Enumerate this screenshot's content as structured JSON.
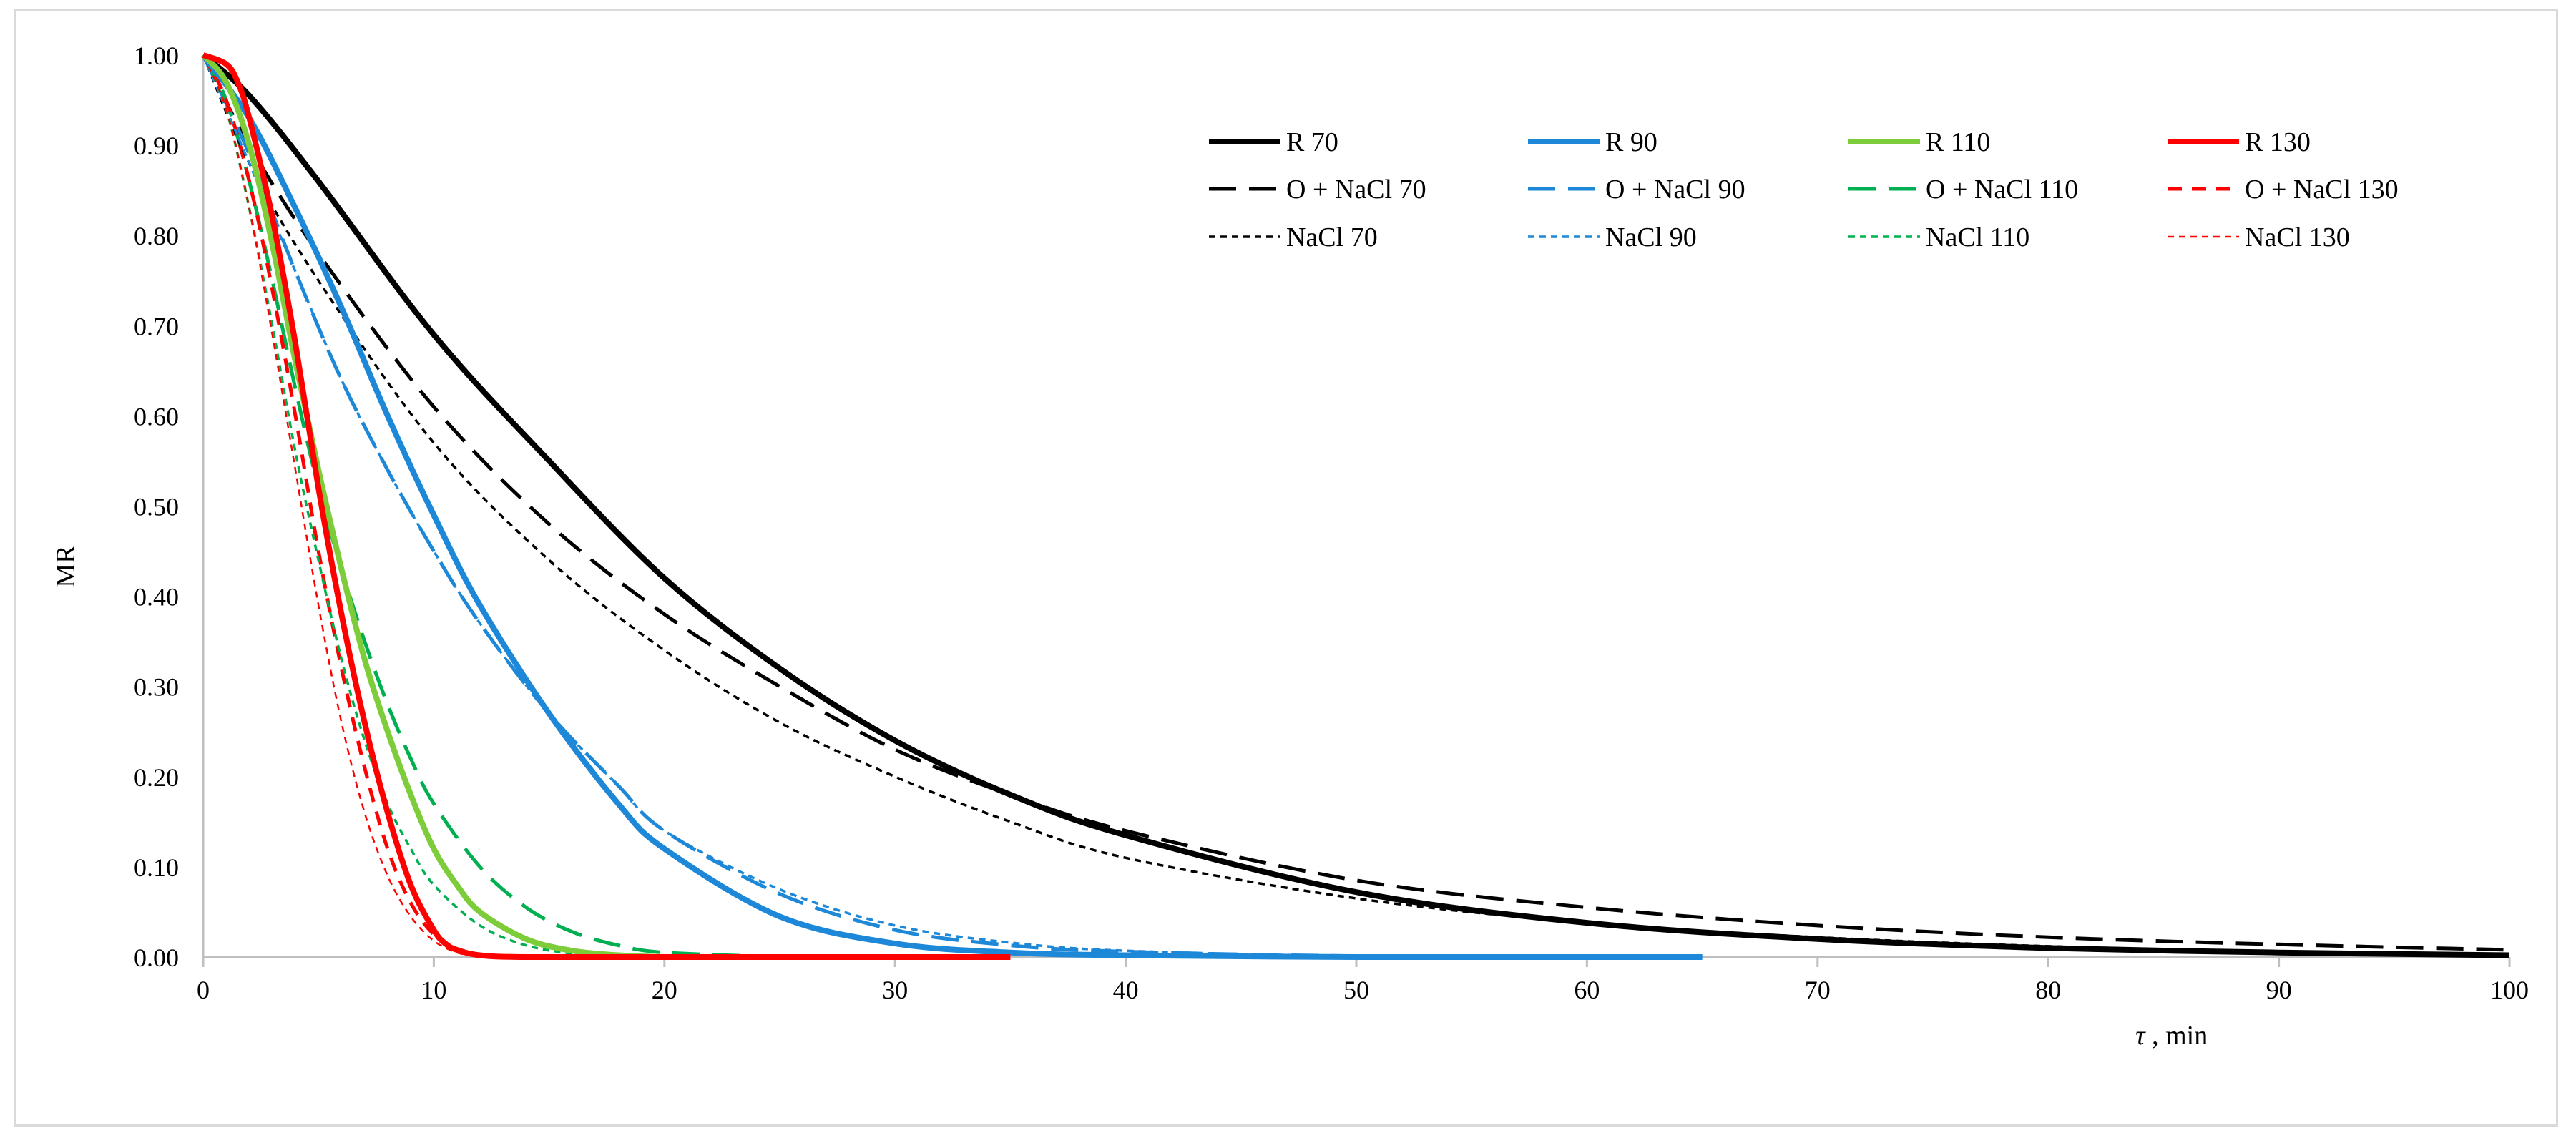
{
  "chart_data": {
    "type": "line",
    "title": "",
    "xlabel_symbol": "τ",
    "xlabel_unit": " , min",
    "ylabel": "MR",
    "xlim": [
      0,
      100
    ],
    "ylim": [
      0,
      1
    ],
    "x_ticks": [
      0,
      10,
      20,
      30,
      40,
      50,
      60,
      70,
      80,
      90,
      100
    ],
    "y_ticks": [
      "0.00",
      "0.10",
      "0.20",
      "0.30",
      "0.40",
      "0.50",
      "0.60",
      "0.70",
      "0.80",
      "0.90",
      "1.00"
    ],
    "grid": false,
    "legend_position": "top-right",
    "series": [
      {
        "name": "R 70",
        "color": "#000000",
        "style": "solid",
        "x": [
          0,
          2,
          5,
          10,
          15,
          20,
          25,
          30,
          35,
          40,
          50,
          60,
          70,
          80,
          90,
          100
        ],
        "y": [
          1.0,
          0.955,
          0.86,
          0.69,
          0.55,
          0.42,
          0.32,
          0.24,
          0.18,
          0.135,
          0.072,
          0.038,
          0.02,
          0.01,
          0.005,
          0.002
        ]
      },
      {
        "name": "R 90",
        "color": "#1e88d8",
        "style": "solid",
        "x": [
          0,
          2,
          4,
          6,
          8,
          10,
          12,
          15,
          18,
          20,
          25,
          30,
          35,
          40,
          50,
          60,
          65
        ],
        "y": [
          1.0,
          0.93,
          0.83,
          0.72,
          0.6,
          0.49,
          0.39,
          0.27,
          0.17,
          0.12,
          0.045,
          0.015,
          0.005,
          0.002,
          0.0,
          0.0,
          0.0
        ]
      },
      {
        "name": "R 110",
        "color": "#7dcc3a",
        "style": "solid",
        "x": [
          0,
          1,
          2,
          3,
          4,
          5,
          6,
          7,
          8,
          9,
          10,
          11,
          12,
          14,
          16,
          18,
          20
        ],
        "y": [
          1.0,
          0.97,
          0.9,
          0.79,
          0.66,
          0.54,
          0.43,
          0.33,
          0.25,
          0.18,
          0.12,
          0.08,
          0.05,
          0.02,
          0.007,
          0.002,
          0.0
        ]
      },
      {
        "name": "R 130",
        "color": "#ff0000",
        "style": "solid",
        "x": [
          0,
          1,
          1.5,
          2,
          3,
          4,
          5,
          6,
          7,
          8,
          9,
          10,
          10.5,
          11,
          12,
          14,
          20,
          35
        ],
        "y": [
          1.0,
          0.99,
          0.97,
          0.93,
          0.82,
          0.68,
          0.52,
          0.38,
          0.26,
          0.16,
          0.08,
          0.03,
          0.015,
          0.008,
          0.002,
          0.0,
          0.0,
          0.0
        ]
      },
      {
        "name": "O + NaCl 70",
        "color": "#000000",
        "style": "long-dash",
        "x": [
          0,
          2,
          5,
          10,
          15,
          20,
          25,
          30,
          35,
          40,
          50,
          60,
          70,
          80,
          90,
          100
        ],
        "y": [
          1.0,
          0.9,
          0.78,
          0.61,
          0.48,
          0.38,
          0.3,
          0.23,
          0.18,
          0.14,
          0.085,
          0.055,
          0.035,
          0.022,
          0.014,
          0.008
        ]
      },
      {
        "name": "O + NaCl 90",
        "color": "#1e88d8",
        "style": "long-dash",
        "x": [
          0,
          2,
          4,
          6,
          8,
          10,
          12,
          15,
          18,
          20,
          25,
          30,
          35,
          40,
          50,
          60,
          65
        ],
        "y": [
          1.0,
          0.89,
          0.76,
          0.64,
          0.54,
          0.45,
          0.37,
          0.27,
          0.19,
          0.14,
          0.07,
          0.03,
          0.013,
          0.006,
          0.001,
          0.0,
          0.0
        ]
      },
      {
        "name": "O + NaCl 110",
        "color": "#00b050",
        "style": "long-dash",
        "x": [
          0,
          1,
          2,
          3,
          4,
          5,
          6,
          7,
          8,
          9,
          10,
          12,
          14,
          16,
          18,
          20,
          25
        ],
        "y": [
          1.0,
          0.95,
          0.86,
          0.75,
          0.63,
          0.52,
          0.43,
          0.35,
          0.28,
          0.22,
          0.17,
          0.1,
          0.055,
          0.028,
          0.013,
          0.005,
          0.0
        ]
      },
      {
        "name": "O + NaCl 130",
        "color": "#ff0000",
        "style": "dash",
        "x": [
          0,
          1,
          2,
          3,
          4,
          5,
          6,
          7,
          8,
          9,
          10,
          11,
          12,
          14
        ],
        "y": [
          1.0,
          0.95,
          0.86,
          0.74,
          0.6,
          0.45,
          0.32,
          0.21,
          0.12,
          0.06,
          0.025,
          0.008,
          0.002,
          0.0
        ]
      },
      {
        "name": "NaCl 70",
        "color": "#000000",
        "style": "short-dash",
        "x": [
          0,
          2,
          5,
          10,
          15,
          20,
          25,
          30,
          35,
          40,
          50,
          60,
          70,
          80,
          90,
          100
        ],
        "y": [
          1.0,
          0.88,
          0.75,
          0.57,
          0.44,
          0.34,
          0.26,
          0.2,
          0.15,
          0.11,
          0.065,
          0.038,
          0.022,
          0.012,
          0.006,
          0.003
        ]
      },
      {
        "name": "NaCl 90",
        "color": "#1e88d8",
        "style": "short-dash",
        "x": [
          0,
          2,
          4,
          6,
          8,
          10,
          12,
          15,
          18,
          20,
          25,
          30,
          35,
          40,
          50,
          60
        ],
        "y": [
          1.0,
          0.88,
          0.76,
          0.64,
          0.54,
          0.45,
          0.37,
          0.27,
          0.19,
          0.14,
          0.075,
          0.035,
          0.016,
          0.007,
          0.001,
          0.0
        ]
      },
      {
        "name": "NaCl 110",
        "color": "#00b050",
        "style": "short-dash",
        "x": [
          0,
          1,
          2,
          3,
          4,
          5,
          6,
          7,
          8,
          9,
          10,
          12,
          14,
          16,
          18,
          20
        ],
        "y": [
          1.0,
          0.94,
          0.83,
          0.7,
          0.56,
          0.44,
          0.33,
          0.24,
          0.17,
          0.12,
          0.08,
          0.035,
          0.013,
          0.004,
          0.001,
          0.0
        ]
      },
      {
        "name": "NaCl 130",
        "color": "#ff0000",
        "style": "thin-dash",
        "x": [
          0,
          1,
          2,
          3,
          4,
          5,
          6,
          7,
          8,
          9,
          10,
          11,
          12
        ],
        "y": [
          1.0,
          0.94,
          0.83,
          0.69,
          0.54,
          0.39,
          0.26,
          0.16,
          0.09,
          0.045,
          0.018,
          0.005,
          0.0
        ]
      }
    ]
  }
}
